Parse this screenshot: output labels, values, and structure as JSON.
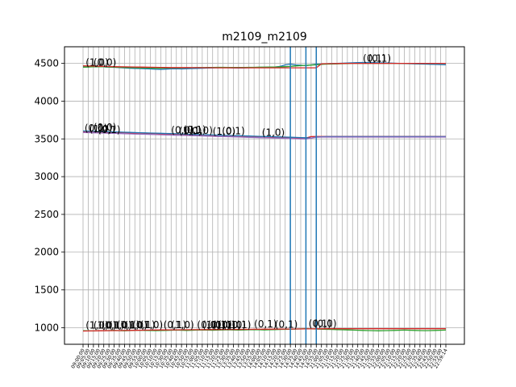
{
  "chart_data": {
    "type": "line",
    "title": "m2109_m2109",
    "xlabel": "",
    "ylabel": "",
    "ylim": [
      780,
      4720
    ],
    "yticks": [
      1000,
      1500,
      2000,
      2500,
      3000,
      3500,
      4000,
      4500
    ],
    "grid": true,
    "x_categories": [
      "09:00:00",
      "09:05:00",
      "09:10:00",
      "09:15:00",
      "09:20:00",
      "09:25:00",
      "09:30:00",
      "09:35:00",
      "09:40:00",
      "09:45:00",
      "09:50:00",
      "09:55:00",
      "10:00:00",
      "10:05:00",
      "10:10:00",
      "10:15:00",
      "10:30:00",
      "10:35:00",
      "10:40:00",
      "10:45:00",
      "10:50:00",
      "10:55:00",
      "11:00:00",
      "11:05:00",
      "11:10:00",
      "11:15:00",
      "11:20:00",
      "11:25:00",
      "13:30:00",
      "13:35:00",
      "13:40:00",
      "13:45:00",
      "13:50:00",
      "13:55:00",
      "14:00:00",
      "14:05:00",
      "14:10:00",
      "14:15:00",
      "14:20:00",
      "14:25:00",
      "14:30:00",
      "14:35:00",
      "14:40:00",
      "14:45:00",
      "14:50:00",
      "14:55:00",
      "21:00:00",
      "21:05:00",
      "21:10:00",
      "21:15:00",
      "21:20:00",
      "21:25:00",
      "21:30:00",
      "21:35:00",
      "21:40:00",
      "21:45:00",
      "21:50:00",
      "21:55:00",
      "22:00:00",
      "22:05:00",
      "22:10:00",
      "22:15:00",
      "22:20:00",
      "22:25:00",
      "22:30:00",
      "22:35:00",
      "22:40:00",
      "22:45:00",
      "22:50:00",
      "22:55:00",
      "22:59:14"
    ],
    "vlines_at_index": [
      40,
      43,
      45
    ],
    "series": [
      {
        "color": "#1f77b4",
        "values": [
          4455,
          4452,
          4458,
          4462,
          4455,
          4450,
          4448,
          4445,
          4440,
          4436,
          4434,
          4432,
          4430,
          4426,
          4422,
          4420,
          4424,
          4428,
          4430,
          4426,
          4430,
          4432,
          4434,
          4436,
          4438,
          4440,
          4442,
          4444,
          4442,
          4440,
          4438,
          4440,
          4442,
          4444,
          4446,
          4448,
          4450,
          4452,
          4460,
          4480,
          4490,
          4480,
          4475,
          4470,
          4480,
          4488,
          4492,
          4495,
          4498,
          4500,
          4502,
          4505,
          4508,
          4510,
          4512,
          4512,
          4510,
          4508,
          4506,
          4504,
          4502,
          4500,
          4498,
          4496,
          4494,
          4492,
          4490,
          4488,
          4486,
          4484,
          4482
        ]
      },
      {
        "color": "#2ca02c",
        "values": [
          4450,
          4452,
          4454,
          4456,
          4454,
          4452,
          4450,
          4448,
          4446,
          4444,
          4442,
          4440,
          4440,
          4438,
          4436,
          4436,
          4438,
          4440,
          4440,
          4440,
          4442,
          4442,
          4444,
          4444,
          4446,
          4446,
          4448,
          4448,
          4446,
          4446,
          4446,
          4446,
          4448,
          4448,
          4450,
          4450,
          4452,
          4452,
          4454,
          4456,
          4460,
          4466,
          4470,
          4474,
          4478,
          4482,
          4486,
          4490,
          4492,
          4494,
          4496,
          4498,
          4500,
          4500,
          4500,
          4500,
          4500,
          4500,
          4500,
          4500,
          4500,
          4500,
          4500,
          4500,
          4500,
          4500,
          4500,
          4500,
          4500,
          4500,
          4500
        ]
      },
      {
        "color": "#d62728",
        "values": [
          4468,
          4466,
          4464,
          4462,
          4460,
          4458,
          4456,
          4455,
          4454,
          4453,
          4452,
          4451,
          4450,
          4449,
          4448,
          4447,
          4446,
          4445,
          4445,
          4444,
          4444,
          4443,
          4443,
          4442,
          4442,
          4442,
          4441,
          4441,
          4441,
          4441,
          4441,
          4441,
          4441,
          4441,
          4441,
          4441,
          4441,
          4441,
          4441,
          4441,
          4441,
          4441,
          4441,
          4441,
          4441,
          4441,
          4495,
          4496,
          4497,
          4498,
          4499,
          4500,
          4500,
          4500,
          4500,
          4500,
          4500,
          4500,
          4500,
          4500,
          4500,
          4500,
          4500,
          4500,
          4500,
          4500,
          4500,
          4500,
          4500,
          4500,
          4500
        ]
      },
      {
        "color": "#d62728",
        "values": [
          3598,
          3596,
          3594,
          3592,
          3590,
          3588,
          3586,
          3584,
          3582,
          3580,
          3578,
          3576,
          3574,
          3572,
          3570,
          3568,
          3566,
          3564,
          3562,
          3560,
          3558,
          3556,
          3554,
          3552,
          3550,
          3548,
          3546,
          3544,
          3542,
          3540,
          3538,
          3536,
          3534,
          3532,
          3530,
          3528,
          3526,
          3524,
          3522,
          3520,
          3518,
          3516,
          3514,
          3512,
          3530,
          3532,
          3532,
          3532,
          3532,
          3532,
          3532,
          3532,
          3532,
          3532,
          3532,
          3532,
          3532,
          3532,
          3532,
          3532,
          3532,
          3532,
          3532,
          3532,
          3532,
          3532,
          3532,
          3532,
          3532,
          3532,
          3532
        ]
      },
      {
        "color": "#1f77b4",
        "values": [
          3605,
          3602,
          3600,
          3598,
          3596,
          3594,
          3592,
          3590,
          3588,
          3586,
          3584,
          3582,
          3580,
          3578,
          3576,
          3574,
          3572,
          3570,
          3568,
          3566,
          3562,
          3560,
          3558,
          3556,
          3554,
          3552,
          3550,
          3548,
          3546,
          3544,
          3542,
          3540,
          3538,
          3536,
          3534,
          3532,
          3530,
          3528,
          3526,
          3524,
          3522,
          3520,
          3518,
          3516,
          3510,
          3525,
          3528,
          3530,
          3530,
          3530,
          3530,
          3530,
          3530,
          3530,
          3530,
          3530,
          3530,
          3530,
          3530,
          3530,
          3530,
          3530,
          3530,
          3530,
          3530,
          3530,
          3530,
          3530,
          3530,
          3530,
          3530
        ]
      },
      {
        "color": "#9467bd",
        "values": [
          3585,
          3583,
          3581,
          3579,
          3577,
          3575,
          3573,
          3571,
          3569,
          3567,
          3565,
          3563,
          3561,
          3559,
          3557,
          3555,
          3553,
          3551,
          3549,
          3547,
          3545,
          3543,
          3541,
          3539,
          3537,
          3535,
          3533,
          3531,
          3529,
          3527,
          3525,
          3523,
          3521,
          3519,
          3517,
          3515,
          3513,
          3511,
          3509,
          3507,
          3505,
          3503,
          3501,
          3499,
          3510,
          3522,
          3524,
          3524,
          3524,
          3524,
          3524,
          3524,
          3524,
          3524,
          3524,
          3524,
          3524,
          3524,
          3524,
          3524,
          3524,
          3524,
          3524,
          3524,
          3524,
          3524,
          3524,
          3524,
          3524,
          3524,
          3524
        ]
      },
      {
        "color": "#2ca02c",
        "values": [
          960,
          958,
          956,
          958,
          960,
          962,
          964,
          960,
          958,
          962,
          964,
          966,
          964,
          962,
          960,
          962,
          964,
          966,
          968,
          966,
          964,
          966,
          968,
          970,
          968,
          966,
          968,
          970,
          972,
          970,
          968,
          970,
          972,
          974,
          972,
          970,
          972,
          974,
          976,
          978,
          980,
          982,
          984,
          986,
          984,
          982,
          980,
          978,
          976,
          974,
          972,
          970,
          968,
          966,
          964,
          962,
          960,
          958,
          960,
          962,
          964,
          966,
          968,
          966,
          964,
          962,
          960,
          962,
          964,
          966,
          968
        ]
      },
      {
        "color": "#d62728",
        "values": [
          955,
          956,
          957,
          958,
          959,
          960,
          961,
          962,
          963,
          964,
          965,
          966,
          967,
          968,
          969,
          970,
          970,
          971,
          971,
          972,
          972,
          973,
          973,
          974,
          974,
          975,
          975,
          976,
          976,
          977,
          977,
          978,
          978,
          979,
          979,
          980,
          980,
          981,
          981,
          982,
          982,
          983,
          983,
          984,
          984,
          985,
          985,
          986,
          986,
          986,
          986,
          986,
          986,
          986,
          986,
          986,
          986,
          986,
          986,
          986,
          986,
          986,
          986,
          986,
          986,
          986,
          986,
          986,
          986,
          986,
          986
        ]
      }
    ],
    "annotations": [
      {
        "text": "(1,0)",
        "xi": 0.5,
        "y": 4470
      },
      {
        "text": "(0,0)",
        "xi": 2.0,
        "y": 4470
      },
      {
        "text": "(0,1)",
        "xi": 54.0,
        "y": 4520
      },
      {
        "text": "(0,1)",
        "xi": 55.0,
        "y": 4520
      },
      {
        "text": "(0,1)",
        "xi": 0.3,
        "y": 3600
      },
      {
        "text": "(1,0)",
        "xi": 1.2,
        "y": 3590
      },
      {
        "text": "(0,0)",
        "xi": 2.0,
        "y": 3610
      },
      {
        "text": "(0,1)",
        "xi": 2.8,
        "y": 3580
      },
      {
        "text": "(0,0)",
        "xi": 17.0,
        "y": 3570
      },
      {
        "text": "(1,0)",
        "xi": 18.5,
        "y": 3560
      },
      {
        "text": "(0,1)",
        "xi": 19.3,
        "y": 3575
      },
      {
        "text": "(1,0)",
        "xi": 20.6,
        "y": 3565
      },
      {
        "text": "(1,0)",
        "xi": 25.0,
        "y": 3555
      },
      {
        "text": "(0,1)",
        "xi": 26.8,
        "y": 3560
      },
      {
        "text": "(1,0)",
        "xi": 34.5,
        "y": 3540
      },
      {
        "text": "(1,0)",
        "xi": 0.5,
        "y": 990
      },
      {
        "text": "(1,0)",
        "xi": 2.0,
        "y": 990
      },
      {
        "text": "(0,1)",
        "xi": 3.5,
        "y": 990
      },
      {
        "text": "(1,0)",
        "xi": 5.0,
        "y": 990
      },
      {
        "text": "(0,1)",
        "xi": 6.5,
        "y": 995
      },
      {
        "text": "(1,0)",
        "xi": 8.0,
        "y": 990
      },
      {
        "text": "(0,1)",
        "xi": 9.5,
        "y": 995
      },
      {
        "text": "(1,0)",
        "xi": 11.0,
        "y": 995
      },
      {
        "text": "(0,1)",
        "xi": 15.5,
        "y": 995
      },
      {
        "text": "(1,0)",
        "xi": 17.0,
        "y": 995
      },
      {
        "text": "(0,0)",
        "xi": 22.0,
        "y": 995
      },
      {
        "text": "(1,0)",
        "xi": 23.0,
        "y": 995
      },
      {
        "text": "(0,1)",
        "xi": 24.0,
        "y": 995
      },
      {
        "text": "(1,0)",
        "xi": 25.0,
        "y": 995
      },
      {
        "text": "(0,1)",
        "xi": 26.0,
        "y": 995
      },
      {
        "text": "(1,0)",
        "xi": 27.0,
        "y": 995
      },
      {
        "text": "(0,1)",
        "xi": 28.0,
        "y": 995
      },
      {
        "text": "(0,1)",
        "xi": 33.0,
        "y": 1005
      },
      {
        "text": "(0,1)",
        "xi": 37.0,
        "y": 1000
      },
      {
        "text": "(0,1)",
        "xi": 43.5,
        "y": 1010
      },
      {
        "text": "(0,0)",
        "xi": 44.5,
        "y": 1010
      }
    ]
  }
}
